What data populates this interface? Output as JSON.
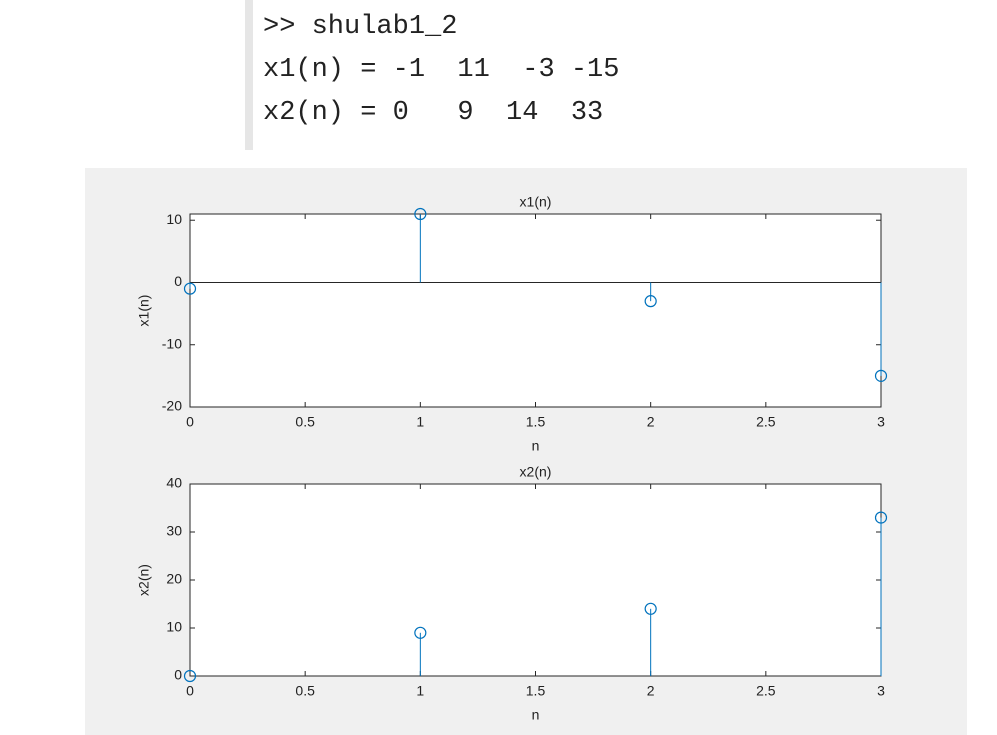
{
  "console": {
    "lines": [
      ">> shulab1_2",
      "x1(n) = -1  11  -3 -15",
      "x2(n) = 0   9  14  33"
    ]
  },
  "chart_data": [
    {
      "type": "stem",
      "title": "x1(n)",
      "xlabel": "n",
      "ylabel": "x1(n)",
      "x": [
        0,
        1,
        2,
        3
      ],
      "values": [
        -1,
        11,
        -3,
        -15
      ],
      "color": "#0072bd",
      "xlim": [
        0,
        3
      ],
      "xticks": [
        0,
        0.5,
        1,
        1.5,
        2,
        2.5,
        3
      ],
      "ylim": [
        -20,
        11
      ],
      "yticks": [
        -20,
        -10,
        0,
        10
      ]
    },
    {
      "type": "stem",
      "title": "x2(n)",
      "xlabel": "n",
      "ylabel": "x2(n)",
      "x": [
        0,
        1,
        2,
        3
      ],
      "values": [
        0,
        9,
        14,
        33
      ],
      "color": "#0072bd",
      "xlim": [
        0,
        3
      ],
      "xticks": [
        0,
        0.5,
        1,
        1.5,
        2,
        2.5,
        3
      ],
      "ylim": [
        0,
        40
      ],
      "yticks": [
        0,
        10,
        20,
        30,
        40
      ]
    }
  ]
}
